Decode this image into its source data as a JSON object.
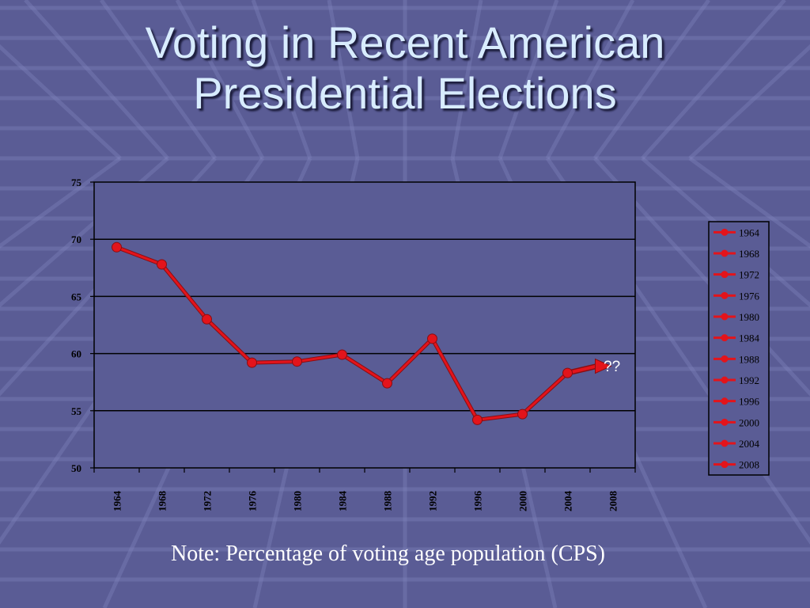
{
  "slide": {
    "title_line1": "Voting in Recent American",
    "title_line2": "Presidential Elections",
    "note": "Note:  Percentage of voting age population (CPS)"
  },
  "colors": {
    "background": "#5a5c95",
    "plot_area": "#5a5c95",
    "series": "#e3141b",
    "title": "#d8ecff"
  },
  "chart_data": {
    "type": "line",
    "title": "",
    "xlabel": "",
    "ylabel": "",
    "ylim": [
      50,
      75
    ],
    "yticks": [
      50,
      55,
      60,
      65,
      70,
      75
    ],
    "grid": "horizontal",
    "legend_position": "right",
    "categories": [
      "1964",
      "1968",
      "1972",
      "1976",
      "1980",
      "1984",
      "1988",
      "1992",
      "1996",
      "2000",
      "2004",
      "2008"
    ],
    "values": [
      69.3,
      67.8,
      63.0,
      59.2,
      59.3,
      59.9,
      57.4,
      61.3,
      54.2,
      54.7,
      58.3,
      null
    ],
    "projection": {
      "from": "2004",
      "to": "2008",
      "from_value": 58.3,
      "to_value": 58.9,
      "label": "??"
    }
  }
}
